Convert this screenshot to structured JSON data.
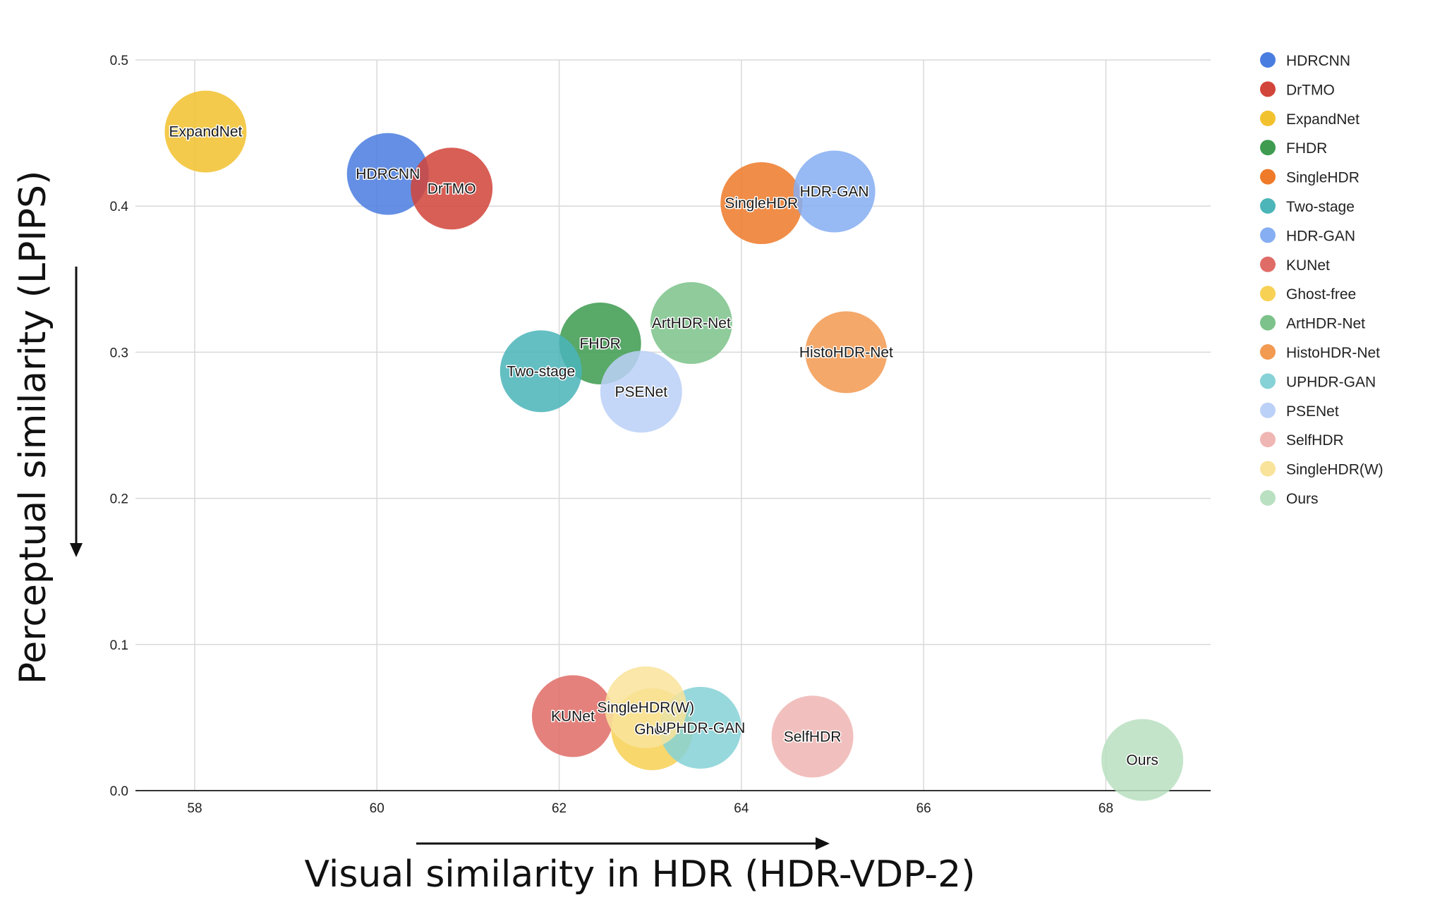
{
  "chart_data": {
    "type": "scatter",
    "title": "",
    "xlabel": "Visual similarity in HDR (HDR-VDP-2)",
    "ylabel": "Perceptual similarity (LPIPS)",
    "xlim": [
      57.35,
      69.15
    ],
    "ylim": [
      0,
      0.5
    ],
    "xticks": [
      "58",
      "60",
      "62",
      "64",
      "66",
      "68"
    ],
    "yticks": [
      "0.0",
      "0.1",
      "0.2",
      "0.3",
      "0.4",
      "0.5"
    ],
    "grid": true,
    "legend_position": "right",
    "series": [
      {
        "name": "HDRCNN",
        "color": "#4a7de0",
        "x": 60.12,
        "y": 0.422
      },
      {
        "name": "DrTMO",
        "color": "#d2453a",
        "x": 60.82,
        "y": 0.412
      },
      {
        "name": "ExpandNet",
        "color": "#f2c12e",
        "x": 58.12,
        "y": 0.451
      },
      {
        "name": "FHDR",
        "color": "#3e9b4f",
        "x": 62.45,
        "y": 0.306
      },
      {
        "name": "SingleHDR",
        "color": "#ee7a2a",
        "x": 64.22,
        "y": 0.402
      },
      {
        "name": "Two-stage",
        "color": "#4bb5b9",
        "x": 61.8,
        "y": 0.287
      },
      {
        "name": "HDR-GAN",
        "color": "#86aef2",
        "x": 65.02,
        "y": 0.41
      },
      {
        "name": "KUNet",
        "color": "#e06c67",
        "x": 62.15,
        "y": 0.051
      },
      {
        "name": "Ghost-free",
        "color": "#f7d154",
        "x": 63.02,
        "y": 0.042
      },
      {
        "name": "ArtHDR-Net",
        "color": "#7dc28a",
        "x": 63.45,
        "y": 0.32
      },
      {
        "name": "HistoHDR-Net",
        "color": "#f29a52",
        "x": 65.15,
        "y": 0.3
      },
      {
        "name": "UPHDR-GAN",
        "color": "#86d2d6",
        "x": 63.55,
        "y": 0.043
      },
      {
        "name": "PSENet",
        "color": "#bcd1f7",
        "x": 62.9,
        "y": 0.273
      },
      {
        "name": "SelfHDR",
        "color": "#efb6b3",
        "x": 64.78,
        "y": 0.037
      },
      {
        "name": "SingleHDR(W)",
        "color": "#f9e39b",
        "x": 62.95,
        "y": 0.057
      },
      {
        "name": "Ours",
        "color": "#b9e0c0",
        "x": 68.4,
        "y": 0.021
      }
    ],
    "bubble_labels": [
      {
        "text": "HDRCNN",
        "series": "HDRCNN"
      },
      {
        "text": "DrTMO",
        "series": "DrTMO"
      },
      {
        "text": "ExpandNet",
        "series": "ExpandNet"
      },
      {
        "text": "FHDR",
        "series": "FHDR"
      },
      {
        "text": "SingleHDR",
        "series": "SingleHDR"
      },
      {
        "text": "Two-stage",
        "series": "Two-stage"
      },
      {
        "text": "HDR-GAN",
        "series": "HDR-GAN"
      },
      {
        "text": "KUNet",
        "series": "KUNet"
      },
      {
        "text": "Ghos",
        "series": "Ghost-free"
      },
      {
        "text": "ArtHDR-Net",
        "series": "ArtHDR-Net"
      },
      {
        "text": "HistoHDR-Net",
        "series": "HistoHDR-Net"
      },
      {
        "text": "UPHDR-GAN",
        "series": "UPHDR-GAN"
      },
      {
        "text": "PSENet",
        "series": "PSENet"
      },
      {
        "text": "SelfHDR",
        "series": "SelfHDR"
      },
      {
        "text": "SingleHDR(W)",
        "series": "SingleHDR(W)"
      },
      {
        "text": "Ours",
        "series": "Ours"
      }
    ]
  }
}
